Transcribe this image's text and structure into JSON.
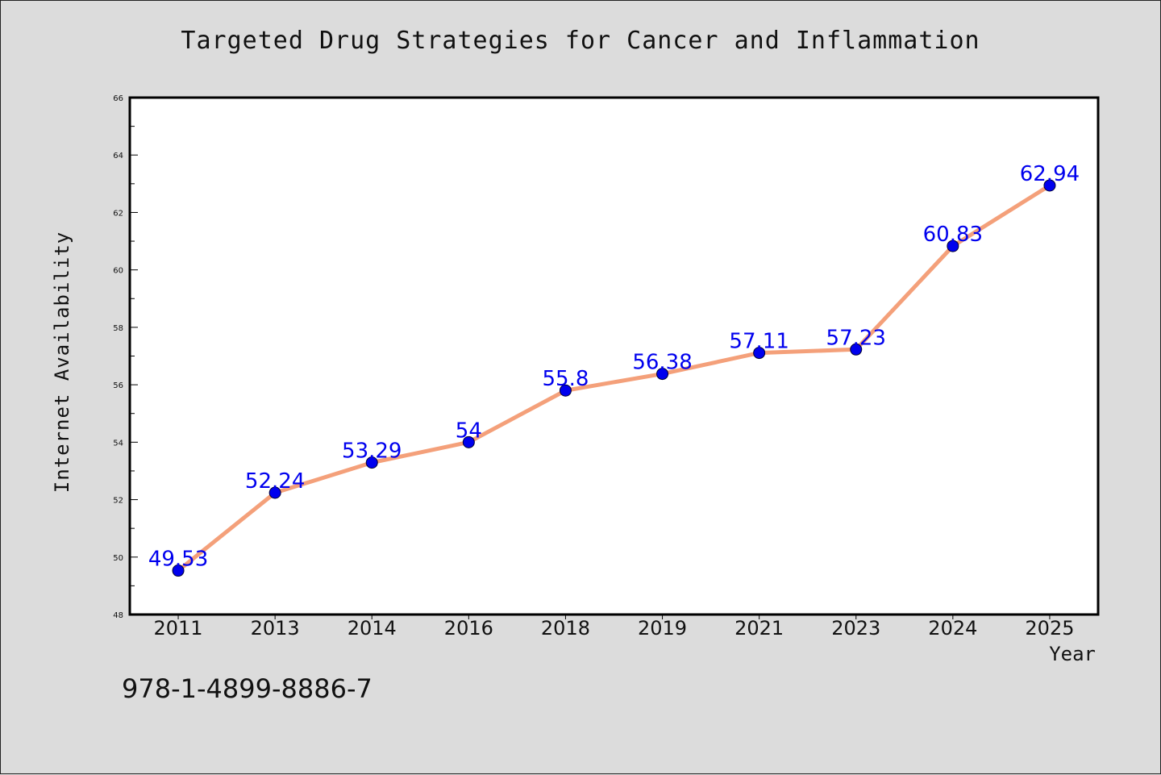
{
  "chart_data": {
    "type": "line",
    "title": "Targeted Drug Strategies for Cancer and Inflammation",
    "xlabel": "Year",
    "ylabel": "Internet Availability",
    "categories": [
      "2011",
      "2013",
      "2014",
      "2016",
      "2018",
      "2019",
      "2021",
      "2023",
      "2024",
      "2025"
    ],
    "series": [
      {
        "values": [
          49.53,
          52.24,
          53.29,
          54,
          55.8,
          56.38,
          57.11,
          57.23,
          60.83,
          62.94
        ],
        "labels": [
          "49.53",
          "52.24",
          "53.29",
          "54",
          "55.8",
          "56.38",
          "57.11",
          "57.23",
          "60.83",
          "62.94"
        ],
        "line_color": "#f4a07a",
        "marker_color": "#0000ee"
      }
    ],
    "ylim": [
      48,
      66
    ],
    "yticks": [
      "48",
      "50",
      "52",
      "54",
      "56",
      "58",
      "60",
      "62",
      "64",
      "66"
    ],
    "grid": false,
    "legend": "none"
  },
  "footer": {
    "isbn": "978-1-4899-8886-7"
  },
  "colors": {
    "background": "#dcdcdc",
    "plot_background": "#ffffff",
    "frame": "#000000"
  }
}
